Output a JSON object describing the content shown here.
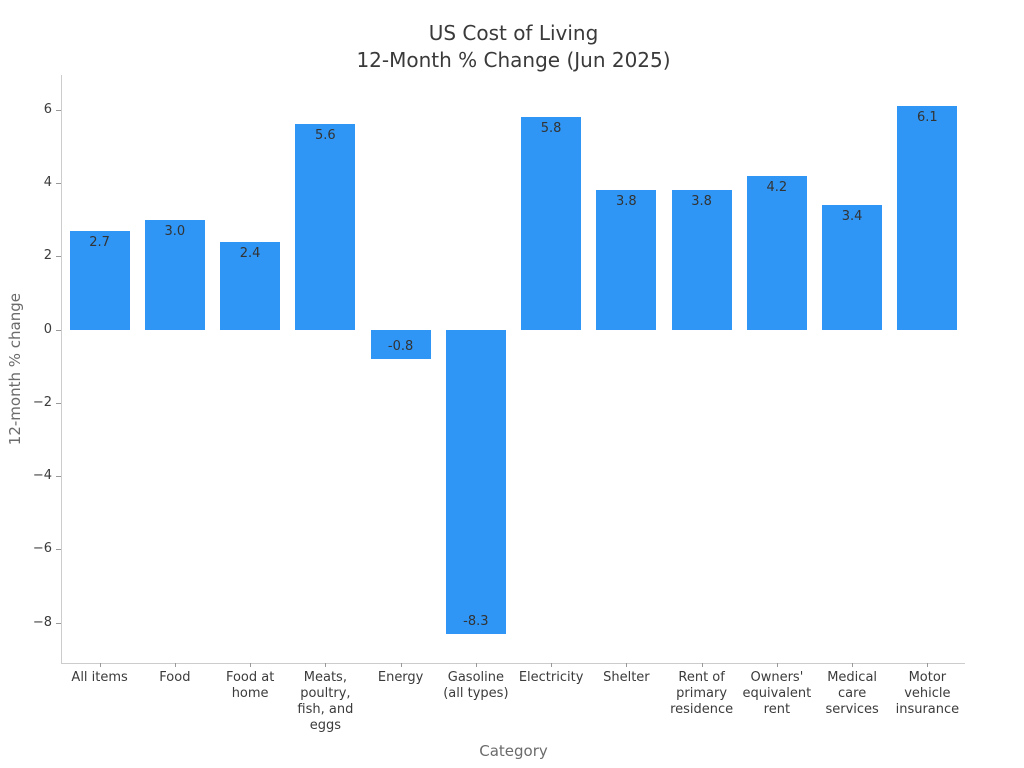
{
  "figure": {
    "title_line1": "US Cost of Living",
    "title_line2": "12-Month % Change (Jun 2025)",
    "xlabel": "Category",
    "ylabel": "12-month % change"
  },
  "chart_data": {
    "type": "bar",
    "title": "US Cost of Living\n12-Month % Change (Jun 2025)",
    "xlabel": "Category",
    "ylabel": "12-month % change",
    "categories": [
      "All items",
      "Food",
      "Food at home",
      "Meats, poultry, fish, and eggs",
      "Energy",
      "Gasoline (all types)",
      "Electricity",
      "Shelter",
      "Rent of primary residence",
      "Owners' equivalent rent",
      "Medical care services",
      "Motor vehicle insurance"
    ],
    "category_labels_wrapped": [
      "All items",
      "Food",
      "Food at\nhome",
      "Meats,\npoultry,\nfish, and\neggs",
      "Energy",
      "Gasoline\n(all types)",
      "Electricity",
      "Shelter",
      "Rent of\nprimary\nresidence",
      "Owners'\nequivalent\nrent",
      "Medical\ncare\nservices",
      "Motor\nvehicle\ninsurance"
    ],
    "values": [
      2.7,
      3.0,
      2.4,
      5.6,
      -0.8,
      -8.3,
      5.8,
      3.8,
      3.8,
      4.2,
      3.4,
      6.1
    ],
    "value_labels": [
      "2.7",
      "3.0",
      "2.4",
      "5.6",
      "-0.8",
      "-8.3",
      "5.8",
      "3.8",
      "3.8",
      "4.2",
      "3.4",
      "6.1"
    ],
    "yticks": [
      6,
      4,
      2,
      0,
      -2,
      -4,
      -6,
      -8
    ],
    "ytick_labels": [
      "6",
      "4",
      "2",
      "0",
      "−2",
      "−4",
      "−6",
      "−8"
    ],
    "ylim": [
      -9.1,
      6.95
    ],
    "grid": false,
    "legend": null,
    "bar_width_fraction": 0.8
  },
  "colors": {
    "bar": "#2F96F5",
    "title": "#3a3a3a",
    "tick_label": "#3b3b3b",
    "axis_label": "#6b6b6b",
    "value_label": "#333333",
    "spine": "#cccccc",
    "tick_mark": "#999999",
    "background": "#ffffff"
  }
}
